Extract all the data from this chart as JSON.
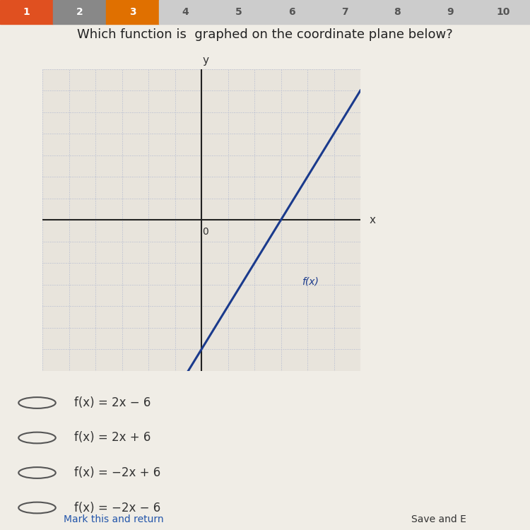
{
  "title": "Which function is  graphed on the coordinate plane below?",
  "title_fontsize": 13,
  "slope": 2,
  "intercept": -6,
  "x_range": [
    -6,
    6
  ],
  "y_range": [
    -7,
    7
  ],
  "grid_color": "#b0b8d0",
  "axis_color": "#222222",
  "line_color": "#1a3a8c",
  "line_width": 2.2,
  "fx_label": "f(x)",
  "x_label": "x",
  "y_label": "y",
  "choices": [
    "f(x) = 2x − 6",
    "f(x) = 2x + 6",
    "f(x) = −2x + 6",
    "f(x) = −2x − 6"
  ],
  "bg_color": "#f0ede6",
  "plot_bg_color": "#e8e4dc",
  "tab_colors": [
    "#e05020",
    "#888888",
    "#e07000",
    "#cccccc",
    "#cccccc",
    "#cccccc",
    "#cccccc",
    "#cccccc",
    "#cccccc",
    "#cccccc"
  ],
  "tab_labels": [
    "1",
    "2",
    "3",
    "4",
    "5",
    "6",
    "7",
    "8",
    "9",
    "10"
  ]
}
